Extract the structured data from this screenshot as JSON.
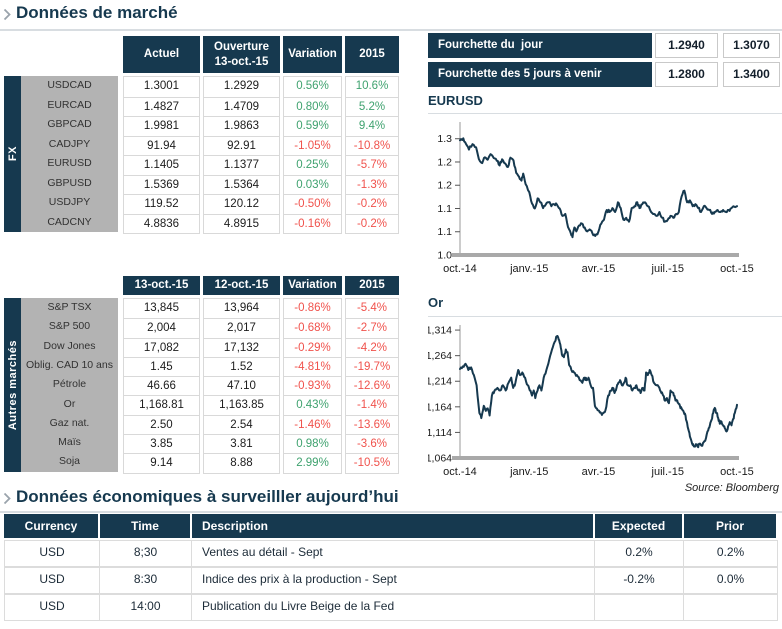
{
  "header": {
    "title": "Données de marché"
  },
  "fx_table": {
    "group_label": "FX",
    "columns": [
      {
        "label": "Actuel"
      },
      {
        "label": "Ouverture",
        "sublabel": "13-oct.-15"
      },
      {
        "label": "Variation"
      },
      {
        "label": "2015"
      }
    ],
    "rows": [
      {
        "label": "USDCAD",
        "values": [
          "1.3001",
          "1.2929",
          "0.56%",
          "10.6%"
        ]
      },
      {
        "label": "EURCAD",
        "values": [
          "1.4827",
          "1.4709",
          "0.80%",
          "5.2%"
        ]
      },
      {
        "label": "GBPCAD",
        "values": [
          "1.9981",
          "1.9863",
          "0.59%",
          "9.4%"
        ]
      },
      {
        "label": "CADJPY",
        "values": [
          "91.94",
          "92.91",
          "-1.05%",
          "-10.8%"
        ]
      },
      {
        "label": "EURUSD",
        "values": [
          "1.1405",
          "1.1377",
          "0.25%",
          "-5.7%"
        ]
      },
      {
        "label": "GBPUSD",
        "values": [
          "1.5369",
          "1.5364",
          "0.03%",
          "-1.3%"
        ]
      },
      {
        "label": "USDJPY",
        "values": [
          "119.52",
          "120.12",
          "-0.50%",
          "-0.2%"
        ]
      },
      {
        "label": "CADCNY",
        "values": [
          "4.8836",
          "4.8915",
          "-0.16%",
          "-0.2%"
        ]
      }
    ]
  },
  "markets_table": {
    "group_label": "Autres marchés",
    "columns": [
      {
        "label": "13-oct.-15"
      },
      {
        "label": "12-oct.-15"
      },
      {
        "label": "Variation"
      },
      {
        "label": "2015"
      }
    ],
    "rows": [
      {
        "label": "S&P TSX",
        "values": [
          "13,845",
          "13,964",
          "-0.86%",
          "-5.4%"
        ]
      },
      {
        "label": "S&P 500",
        "values": [
          "2,004",
          "2,017",
          "-0.68%",
          "-2.7%"
        ]
      },
      {
        "label": "Dow Jones",
        "values": [
          "17,082",
          "17,132",
          "-0.29%",
          "-4.2%"
        ]
      },
      {
        "label": "Oblig. CAD 10 ans",
        "values": [
          "1.45",
          "1.52",
          "-4.81%",
          "-19.7%"
        ]
      },
      {
        "label": "Pétrole",
        "values": [
          "46.66",
          "47.10",
          "-0.93%",
          "-12.6%"
        ]
      },
      {
        "label": "Or",
        "values": [
          "1,168.81",
          "1,163.85",
          "0.43%",
          "-1.4%"
        ]
      },
      {
        "label": "Gaz nat.",
        "values": [
          "2.50",
          "2.54",
          "-1.46%",
          "-13.6%"
        ]
      },
      {
        "label": "Maïs",
        "values": [
          "3.85",
          "3.81",
          "0.98%",
          "-3.6%"
        ]
      },
      {
        "label": "Soja",
        "values": [
          "9.14",
          "8.88",
          "2.99%",
          "-10.5%"
        ]
      }
    ]
  },
  "ranges": {
    "rows": [
      {
        "label": "Fourchette du  jour",
        "low": "1.2940",
        "high": "1.3070"
      },
      {
        "label": "Fourchette des 5 jours à venir",
        "low": "1.2800",
        "high": "1.3400"
      }
    ]
  },
  "chart_data": [
    {
      "type": "line",
      "title": "EURUSD",
      "x_labels": [
        "oct.-14",
        "janv.-15",
        "avr.-15",
        "juil.-15",
        "oct.-15"
      ],
      "ylim": [
        1.0,
        1.338
      ],
      "y_ticks": [
        {
          "v": 1.3,
          "label": "1.3"
        },
        {
          "v": 1.24,
          "label": "1.2"
        },
        {
          "v": 1.18,
          "label": "1.2"
        },
        {
          "v": 1.12,
          "label": "1.1"
        },
        {
          "v": 1.06,
          "label": "1.1"
        },
        {
          "v": 1.0,
          "label": "1.0"
        }
      ],
      "points": [
        [
          0,
          1.296
        ],
        [
          0.012,
          1.301
        ],
        [
          0.022,
          1.286
        ],
        [
          0.032,
          1.272
        ],
        [
          0.045,
          1.286
        ],
        [
          0.058,
          1.278
        ],
        [
          0.068,
          1.248
        ],
        [
          0.08,
          1.237
        ],
        [
          0.09,
          1.252
        ],
        [
          0.1,
          1.246
        ],
        [
          0.11,
          1.26
        ],
        [
          0.122,
          1.25
        ],
        [
          0.133,
          1.243
        ],
        [
          0.143,
          1.231
        ],
        [
          0.152,
          1.247
        ],
        [
          0.163,
          1.236
        ],
        [
          0.173,
          1.227
        ],
        [
          0.182,
          1.251
        ],
        [
          0.193,
          1.244
        ],
        [
          0.203,
          1.212
        ],
        [
          0.213,
          1.202
        ],
        [
          0.222,
          1.192
        ],
        [
          0.228,
          1.21
        ],
        [
          0.237,
          1.183
        ],
        [
          0.25,
          1.162
        ],
        [
          0.26,
          1.133
        ],
        [
          0.27,
          1.12
        ],
        [
          0.28,
          1.146
        ],
        [
          0.29,
          1.136
        ],
        [
          0.3,
          1.121
        ],
        [
          0.31,
          1.131
        ],
        [
          0.32,
          1.136
        ],
        [
          0.33,
          1.126
        ],
        [
          0.34,
          1.131
        ],
        [
          0.35,
          1.13
        ],
        [
          0.36,
          1.12
        ],
        [
          0.37,
          1.101
        ],
        [
          0.38,
          1.106
        ],
        [
          0.39,
          1.072
        ],
        [
          0.4,
          1.056
        ],
        [
          0.406,
          1.046
        ],
        [
          0.413,
          1.071
        ],
        [
          0.42,
          1.061
        ],
        [
          0.43,
          1.076
        ],
        [
          0.44,
          1.081
        ],
        [
          0.45,
          1.071
        ],
        [
          0.46,
          1.061
        ],
        [
          0.468,
          1.066
        ],
        [
          0.478,
          1.056
        ],
        [
          0.488,
          1.049
        ],
        [
          0.5,
          1.061
        ],
        [
          0.51,
          1.081
        ],
        [
          0.52,
          1.091
        ],
        [
          0.53,
          1.116
        ],
        [
          0.54,
          1.111
        ],
        [
          0.55,
          1.121
        ],
        [
          0.56,
          1.111
        ],
        [
          0.57,
          1.136
        ],
        [
          0.58,
          1.121
        ],
        [
          0.59,
          1.091
        ],
        [
          0.6,
          1.096
        ],
        [
          0.61,
          1.086
        ],
        [
          0.62,
          1.121
        ],
        [
          0.63,
          1.126
        ],
        [
          0.64,
          1.136
        ],
        [
          0.648,
          1.121
        ],
        [
          0.658,
          1.131
        ],
        [
          0.668,
          1.136
        ],
        [
          0.678,
          1.126
        ],
        [
          0.69,
          1.111
        ],
        [
          0.7,
          1.106
        ],
        [
          0.71,
          1.101
        ],
        [
          0.72,
          1.111
        ],
        [
          0.73,
          1.096
        ],
        [
          0.74,
          1.086
        ],
        [
          0.75,
          1.091
        ],
        [
          0.76,
          1.101
        ],
        [
          0.77,
          1.096
        ],
        [
          0.78,
          1.106
        ],
        [
          0.79,
          1.111
        ],
        [
          0.8,
          1.151
        ],
        [
          0.81,
          1.166
        ],
        [
          0.82,
          1.136
        ],
        [
          0.83,
          1.141
        ],
        [
          0.84,
          1.126
        ],
        [
          0.85,
          1.131
        ],
        [
          0.86,
          1.121
        ],
        [
          0.87,
          1.111
        ],
        [
          0.88,
          1.126
        ],
        [
          0.89,
          1.121
        ],
        [
          0.9,
          1.116
        ],
        [
          0.91,
          1.106
        ],
        [
          0.92,
          1.111
        ],
        [
          0.93,
          1.116
        ],
        [
          0.94,
          1.111
        ],
        [
          0.95,
          1.116
        ],
        [
          0.96,
          1.111
        ],
        [
          0.97,
          1.116
        ],
        [
          0.98,
          1.121
        ],
        [
          1,
          1.126
        ]
      ]
    },
    {
      "type": "line",
      "title": "Or",
      "x_labels": [
        "oct.-14",
        "janv.-15",
        "avr.-15",
        "juil.-15",
        "oct.-15"
      ],
      "ylim": [
        1064,
        1320
      ],
      "y_ticks": [
        {
          "v": 1314,
          "label": "1,314"
        },
        {
          "v": 1264,
          "label": "1,264"
        },
        {
          "v": 1214,
          "label": "1,214"
        },
        {
          "v": 1164,
          "label": "1,164"
        },
        {
          "v": 1114,
          "label": "1,114"
        },
        {
          "v": 1064,
          "label": "1,064"
        }
      ],
      "points": [
        [
          0,
          1238
        ],
        [
          0.01,
          1243
        ],
        [
          0.02,
          1248
        ],
        [
          0.03,
          1236
        ],
        [
          0.04,
          1241
        ],
        [
          0.05,
          1226
        ],
        [
          0.06,
          1206
        ],
        [
          0.07,
          1152
        ],
        [
          0.077,
          1142
        ],
        [
          0.086,
          1166
        ],
        [
          0.093,
          1156
        ],
        [
          0.1,
          1161
        ],
        [
          0.107,
          1147
        ],
        [
          0.115,
          1186
        ],
        [
          0.125,
          1196
        ],
        [
          0.135,
          1201
        ],
        [
          0.145,
          1196
        ],
        [
          0.155,
          1206
        ],
        [
          0.165,
          1196
        ],
        [
          0.175,
          1211
        ],
        [
          0.185,
          1221
        ],
        [
          0.192,
          1201
        ],
        [
          0.2,
          1211
        ],
        [
          0.21,
          1236
        ],
        [
          0.217,
          1226
        ],
        [
          0.225,
          1231
        ],
        [
          0.235,
          1221
        ],
        [
          0.245,
          1206
        ],
        [
          0.252,
          1196
        ],
        [
          0.26,
          1186
        ],
        [
          0.266,
          1196
        ],
        [
          0.272,
          1181
        ],
        [
          0.28,
          1196
        ],
        [
          0.287,
          1206
        ],
        [
          0.294,
          1196
        ],
        [
          0.302,
          1221
        ],
        [
          0.312,
          1236
        ],
        [
          0.322,
          1256
        ],
        [
          0.332,
          1276
        ],
        [
          0.342,
          1291
        ],
        [
          0.35,
          1302
        ],
        [
          0.356,
          1296
        ],
        [
          0.362,
          1286
        ],
        [
          0.368,
          1266
        ],
        [
          0.375,
          1261
        ],
        [
          0.382,
          1276
        ],
        [
          0.388,
          1271
        ],
        [
          0.394,
          1246
        ],
        [
          0.402,
          1236
        ],
        [
          0.412,
          1231
        ],
        [
          0.422,
          1226
        ],
        [
          0.432,
          1216
        ],
        [
          0.442,
          1211
        ],
        [
          0.45,
          1221
        ],
        [
          0.457,
          1216
        ],
        [
          0.464,
          1221
        ],
        [
          0.472,
          1206
        ],
        [
          0.48,
          1201
        ],
        [
          0.487,
          1166
        ],
        [
          0.494,
          1161
        ],
        [
          0.502,
          1156
        ],
        [
          0.51,
          1151
        ],
        [
          0.518,
          1152
        ],
        [
          0.525,
          1157
        ],
        [
          0.535,
          1186
        ],
        [
          0.545,
          1196
        ],
        [
          0.552,
          1201
        ],
        [
          0.558,
          1191
        ],
        [
          0.565,
          1201
        ],
        [
          0.572,
          1211
        ],
        [
          0.578,
          1216
        ],
        [
          0.585,
          1206
        ],
        [
          0.592,
          1211
        ],
        [
          0.598,
          1221
        ],
        [
          0.605,
          1206
        ],
        [
          0.615,
          1206
        ],
        [
          0.622,
          1196
        ],
        [
          0.63,
          1201
        ],
        [
          0.637,
          1206
        ],
        [
          0.645,
          1196
        ],
        [
          0.652,
          1191
        ],
        [
          0.66,
          1201
        ],
        [
          0.666,
          1196
        ],
        [
          0.672,
          1231
        ],
        [
          0.678,
          1226
        ],
        [
          0.685,
          1236
        ],
        [
          0.692,
          1226
        ],
        [
          0.7,
          1211
        ],
        [
          0.71,
          1206
        ],
        [
          0.72,
          1201
        ],
        [
          0.727,
          1191
        ],
        [
          0.734,
          1186
        ],
        [
          0.74,
          1176
        ],
        [
          0.747,
          1181
        ],
        [
          0.754,
          1171
        ],
        [
          0.76,
          1196
        ],
        [
          0.77,
          1191
        ],
        [
          0.776,
          1181
        ],
        [
          0.782,
          1176
        ],
        [
          0.788,
          1171
        ],
        [
          0.794,
          1166
        ],
        [
          0.8,
          1161
        ],
        [
          0.806,
          1156
        ],
        [
          0.812,
          1151
        ],
        [
          0.818,
          1136
        ],
        [
          0.824,
          1121
        ],
        [
          0.83,
          1106
        ],
        [
          0.836,
          1096
        ],
        [
          0.842,
          1091
        ],
        [
          0.848,
          1086
        ],
        [
          0.852,
          1091
        ],
        [
          0.858,
          1086
        ],
        [
          0.864,
          1092
        ],
        [
          0.872,
          1088
        ],
        [
          0.88,
          1095
        ],
        [
          0.888,
          1103
        ],
        [
          0.896,
          1118
        ],
        [
          0.902,
          1128
        ],
        [
          0.908,
          1138
        ],
        [
          0.914,
          1152
        ],
        [
          0.92,
          1162
        ],
        [
          0.926,
          1152
        ],
        [
          0.932,
          1142
        ],
        [
          0.938,
          1131
        ],
        [
          0.944,
          1135
        ],
        [
          0.95,
          1128
        ],
        [
          0.956,
          1122
        ],
        [
          0.962,
          1116
        ],
        [
          0.968,
          1126
        ],
        [
          0.974,
          1134
        ],
        [
          0.98,
          1128
        ],
        [
          0.986,
          1140
        ],
        [
          0.992,
          1152
        ],
        [
          0.996,
          1160
        ],
        [
          1,
          1168
        ]
      ]
    }
  ],
  "source": "Source: Bloomberg",
  "econ": {
    "title": "Données économiques à surveilller aujourd’hui",
    "columns": [
      "Currency",
      "Time",
      "Description",
      "Expected",
      "Prior"
    ],
    "rows": [
      [
        "USD",
        "8;30",
        "Ventes au détail - Sept",
        "0.2%",
        "0.2%"
      ],
      [
        "USD",
        "8:30",
        "Indice des prix à la production - Sept",
        "-0.2%",
        "0.0%"
      ],
      [
        "USD",
        "14:00",
        "Publication du Livre Beige de la Fed",
        "",
        ""
      ]
    ]
  },
  "colors": {
    "navy": "#16394F",
    "green": "#3FA26F",
    "red": "#F0524C",
    "gray_block": "#b3b3b3",
    "border": "#d9d9d9",
    "axis_bar": "#a9a9a9",
    "line": "#16394F"
  }
}
